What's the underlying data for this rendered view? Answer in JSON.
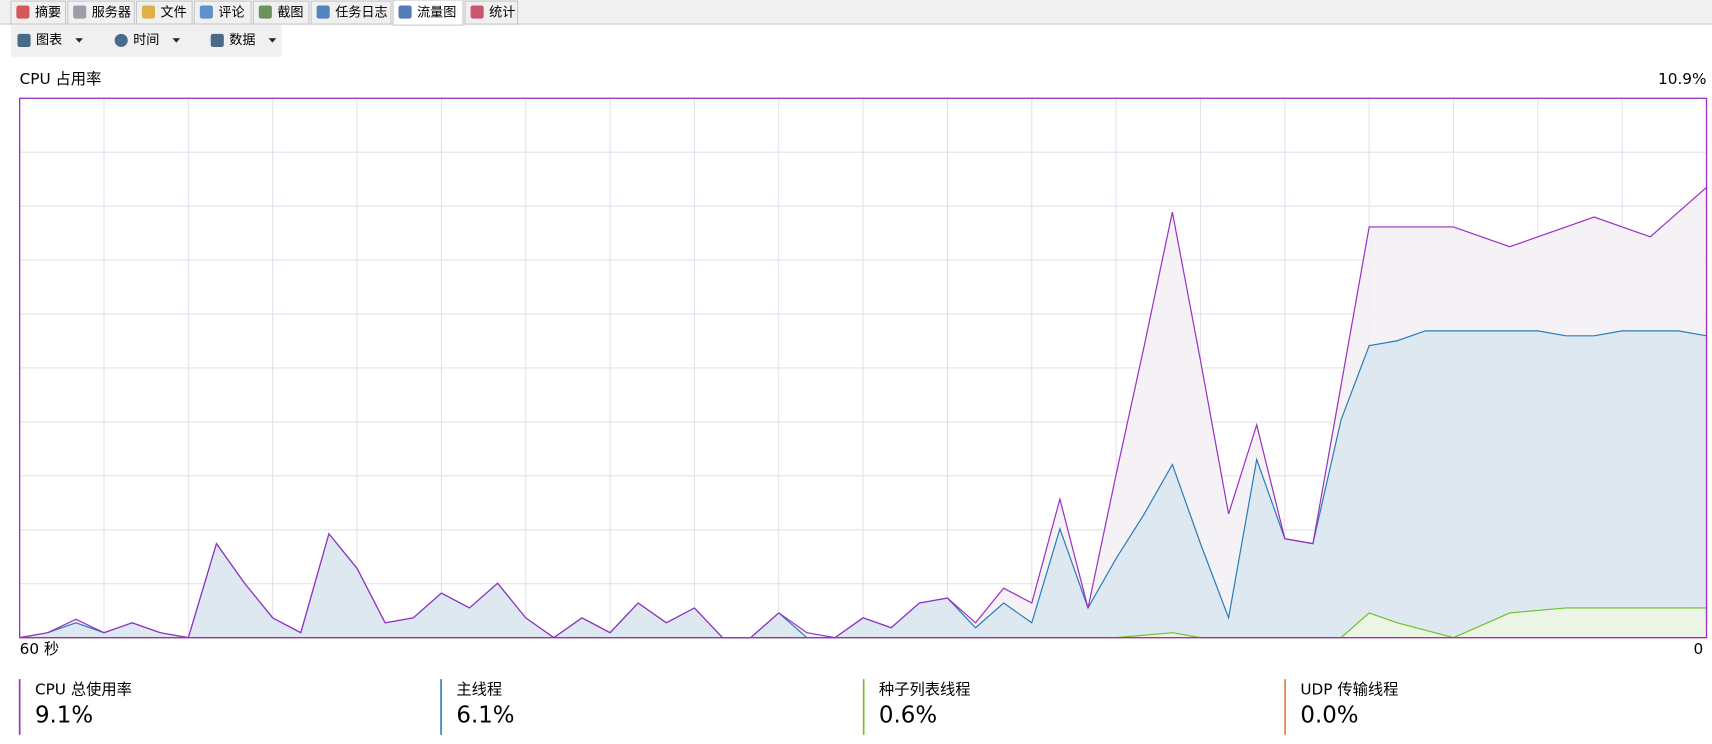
{
  "tabs": [
    "摘要",
    "服务器",
    "文件",
    "评论",
    "截图",
    "任务日志",
    "流量图",
    "统计"
  ],
  "toolbar": [
    "图表",
    "时间",
    "数据"
  ],
  "chart_data": {
    "type": "area",
    "title": "CPU 占用率",
    "x": [
      60,
      59,
      58,
      57,
      56,
      55,
      54,
      53,
      52,
      51,
      50,
      49,
      48,
      47,
      46,
      45,
      44,
      43,
      42,
      41,
      40,
      39,
      38,
      37,
      36,
      35,
      34,
      33,
      32,
      31,
      30,
      29,
      28,
      27,
      26,
      25,
      24,
      23,
      22,
      21,
      20,
      19,
      18,
      17,
      16,
      15,
      14,
      13,
      12,
      11,
      10,
      9,
      8,
      7,
      6,
      5,
      4,
      3,
      2,
      1,
      0
    ],
    "xlim": [
      60,
      0
    ],
    "xticks": [
      {
        "value": 60,
        "label": "60 秒"
      },
      0
    ],
    "ylim": [
      0,
      10.9
    ],
    "yticks": [
      {
        "value": 10.9,
        "label": "10.9%"
      }
    ],
    "grid": true,
    "series": [
      {
        "name": "CPU 总使用率",
        "color": "#9b2fc4",
        "fill": "#f3f0f5",
        "current_label": "9.1%",
        "values": [
          0,
          0.1,
          0.37,
          0.1,
          0.3,
          0.1,
          0,
          1.9,
          1.1,
          0.4,
          0.1,
          2.1,
          1.4,
          0.3,
          0.4,
          0.9,
          0.6,
          1.1,
          0.4,
          0,
          0.4,
          0.1,
          0.7,
          0.3,
          0.6,
          0,
          0,
          0.5,
          0.1,
          0,
          0.4,
          0.2,
          0.7,
          0.8,
          0.3,
          1.0,
          0.7,
          2.8,
          0.6,
          3.3,
          5.9,
          8.6,
          5.6,
          2.5,
          4.3,
          2.0,
          1.9,
          5.1,
          8.3,
          8.3,
          8.3,
          8.3,
          8.1,
          7.9,
          8.1,
          8.3,
          8.5,
          8.3,
          8.1,
          8.6,
          9.1
        ]
      },
      {
        "name": "主线程",
        "color": "#2a7db8",
        "fill": "#d9e6f0",
        "current_label": "6.1%",
        "values": [
          0,
          0.1,
          0.3,
          0.1,
          0.3,
          0.1,
          0,
          1.9,
          1.1,
          0.4,
          0.1,
          2.1,
          1.4,
          0.3,
          0.4,
          0.9,
          0.6,
          1.1,
          0.4,
          0,
          0.4,
          0.1,
          0.7,
          0.3,
          0.6,
          0,
          0,
          0.5,
          0,
          0,
          0.4,
          0.2,
          0.7,
          0.8,
          0.2,
          0.7,
          0.3,
          2.2,
          0.6,
          1.6,
          2.5,
          3.5,
          1.9,
          0.4,
          3.6,
          2.0,
          1.9,
          4.4,
          5.9,
          6.0,
          6.2,
          6.2,
          6.2,
          6.2,
          6.2,
          6.1,
          6.1,
          6.2,
          6.2,
          6.2,
          6.1
        ]
      },
      {
        "name": "种子列表线程",
        "color": "#6cc22a",
        "fill": "#eef6e4",
        "current_label": "0.6%",
        "values": [
          0,
          0,
          0,
          0,
          0,
          0,
          0,
          0,
          0,
          0,
          0,
          0,
          0,
          0,
          0,
          0,
          0,
          0,
          0,
          0,
          0,
          0,
          0,
          0,
          0,
          0,
          0,
          0,
          0,
          0,
          0,
          0,
          0,
          0,
          0,
          0,
          0,
          0,
          0,
          0,
          0.05,
          0.1,
          0,
          0,
          0,
          0,
          0,
          0,
          0.5,
          0.3,
          0.15,
          0,
          0.25,
          0.5,
          0.55,
          0.6,
          0.6,
          0.6,
          0.6,
          0.6,
          0.6
        ]
      },
      {
        "name": "UDP 传输线程",
        "color": "#e07a3c",
        "fill": "none",
        "current_label": "0.0%",
        "values": [
          0,
          0,
          0,
          0,
          0,
          0,
          0,
          0,
          0,
          0,
          0,
          0,
          0,
          0,
          0,
          0,
          0,
          0,
          0,
          0,
          0,
          0,
          0,
          0,
          0,
          0,
          0,
          0,
          0,
          0,
          0,
          0,
          0,
          0,
          0,
          0,
          0,
          0,
          0,
          0,
          0,
          0,
          0,
          0,
          0,
          0,
          0,
          0,
          0,
          0,
          0,
          0,
          0,
          0,
          0,
          0,
          0,
          0,
          0,
          0,
          0
        ]
      }
    ]
  }
}
